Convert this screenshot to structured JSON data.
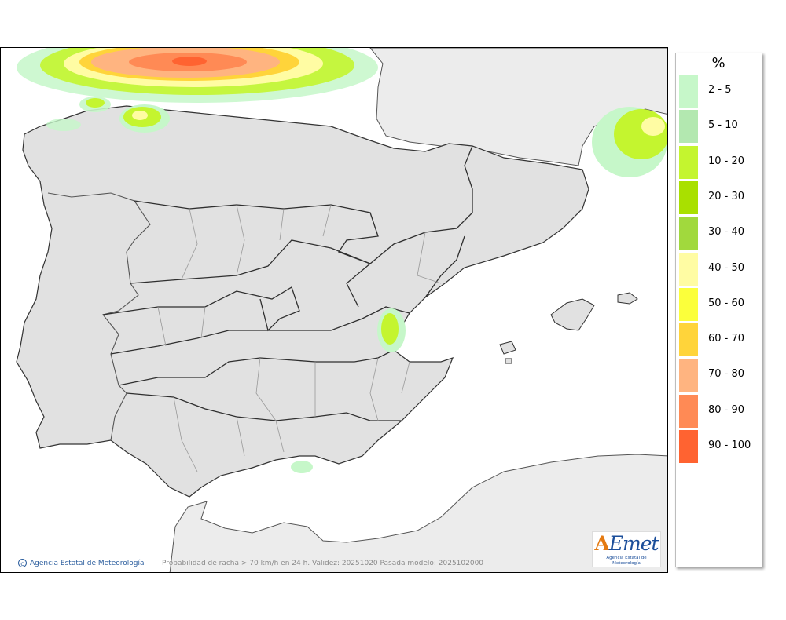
{
  "legend": {
    "title": "%",
    "items": [
      {
        "label": "2 - 5",
        "color": "#c6f7c9"
      },
      {
        "label": "5 - 10",
        "color": "#b3e8b0"
      },
      {
        "label": "10 - 20",
        "color": "#c4f52f"
      },
      {
        "label": "20 - 30",
        "color": "#a9e000"
      },
      {
        "label": "30 - 40",
        "color": "#a1d93d"
      },
      {
        "label": "40 - 50",
        "color": "#fffca3"
      },
      {
        "label": "50 - 60",
        "color": "#fbff3b"
      },
      {
        "label": "60 - 70",
        "color": "#ffd43a"
      },
      {
        "label": "70 - 80",
        "color": "#ffb480"
      },
      {
        "label": "80 - 90",
        "color": "#ff8a55"
      },
      {
        "label": "90 - 100",
        "color": "#ff6331"
      }
    ]
  },
  "footer": {
    "credit": "Agencia Estatal de Meteorología",
    "caption": "Probabilidad de racha > 70 km/h en 24 h. Validez: 20251020 Pasada modelo: 2025102000",
    "logo_text": "AEmet",
    "logo_sub": "Agencia Estatal de Meteorología"
  },
  "colors": {
    "land": "#e1e1e1",
    "sea": "#ffffff",
    "border": "#3a3a3a",
    "province": "#8c8c8c"
  }
}
